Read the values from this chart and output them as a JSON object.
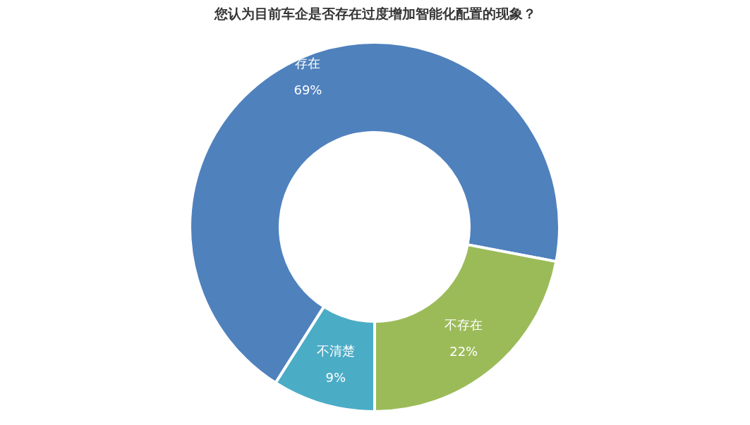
{
  "chart_data": {
    "type": "donut",
    "title": "您认为目前车企是否存在过度增加智能化配置的现象？",
    "categories": [
      "存在",
      "不存在",
      "不清楚"
    ],
    "values": [
      69,
      22,
      9
    ],
    "colors": [
      "#4f81bd",
      "#9bbb59",
      "#4bacc6"
    ],
    "value_labels": [
      "69%",
      "22%",
      "9%"
    ]
  }
}
